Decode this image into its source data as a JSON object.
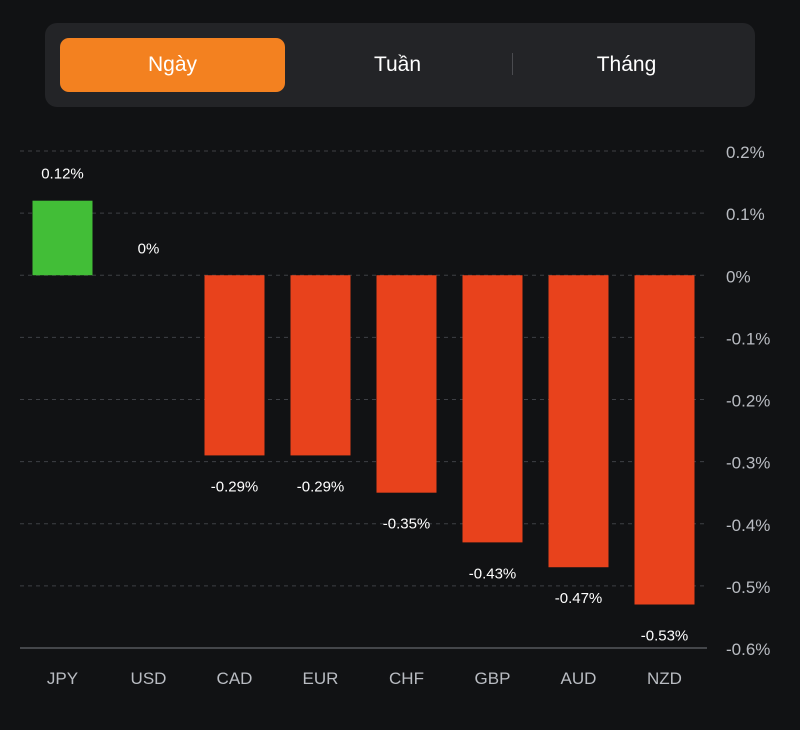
{
  "tabs": [
    {
      "label": "Ngày",
      "active": true
    },
    {
      "label": "Tuần",
      "active": false
    },
    {
      "label": "Tháng",
      "active": false
    }
  ],
  "colors": {
    "positive": "#42be37",
    "negative": "#e8421c",
    "accent": "#f38120",
    "panel": "#232427",
    "background": "#111214"
  },
  "chart_data": {
    "type": "bar",
    "categories": [
      "JPY",
      "USD",
      "CAD",
      "EUR",
      "CHF",
      "GBP",
      "AUD",
      "NZD"
    ],
    "values": [
      0.12,
      0,
      -0.29,
      -0.29,
      -0.35,
      -0.43,
      -0.47,
      -0.53
    ],
    "value_labels": [
      "0.12%",
      "0%",
      "-0.29%",
      "-0.29%",
      "-0.35%",
      "-0.43%",
      "-0.47%",
      "-0.53%"
    ],
    "ylim": [
      -0.6,
      0.2
    ],
    "yticks": [
      0.2,
      0.1,
      0,
      -0.1,
      -0.2,
      -0.3,
      -0.4,
      -0.5,
      -0.6
    ],
    "ytick_labels": [
      "0.2%",
      "0.1%",
      "0%",
      "-0.1%",
      "-0.2%",
      "-0.3%",
      "-0.4%",
      "-0.5%",
      "-0.6%"
    ],
    "y_axis_side": "right",
    "grid": true
  }
}
